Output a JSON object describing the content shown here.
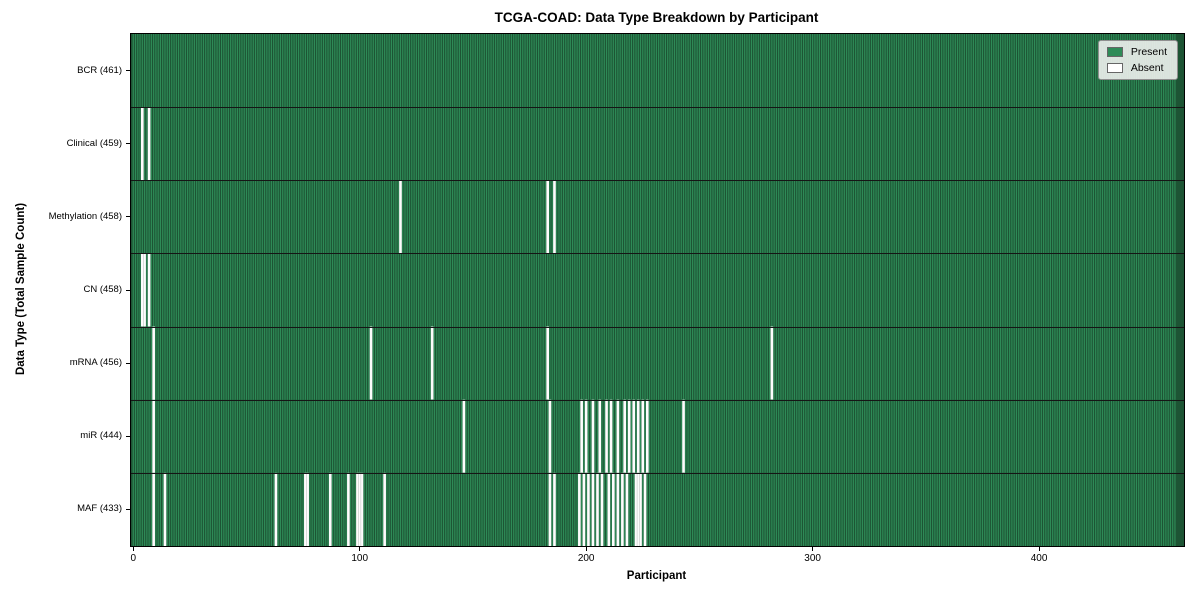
{
  "chart_data": {
    "type": "heatmap",
    "title": "TCGA-COAD: Data Type Breakdown by Participant",
    "xlabel": "Participant",
    "ylabel": "Data Type (Total Sample Count)",
    "n_participants": 461,
    "x_ticks": [
      0,
      100,
      200,
      300,
      400
    ],
    "xlim": [
      -1,
      464
    ],
    "grid": "row-separators-only",
    "legend": {
      "position": "upper-right",
      "items": [
        {
          "label": "Present",
          "color": "#2e8b57"
        },
        {
          "label": "Absent",
          "color": "#ffffff"
        }
      ]
    },
    "rows": [
      {
        "label": "BCR (461)",
        "data_type": "BCR",
        "total_samples": 461,
        "absent_participants": []
      },
      {
        "label": "Clinical (459)",
        "data_type": "Clinical",
        "total_samples": 459,
        "absent_participants": [
          4,
          7
        ]
      },
      {
        "label": "Methylation (458)",
        "data_type": "Methylation",
        "total_samples": 458,
        "absent_participants": [
          118,
          183,
          186
        ]
      },
      {
        "label": "CN (458)",
        "data_type": "CN",
        "total_samples": 458,
        "absent_participants": [
          4,
          5,
          7
        ]
      },
      {
        "label": "mRNA (456)",
        "data_type": "mRNA",
        "total_samples": 456,
        "absent_participants": [
          9,
          105,
          132,
          183,
          282
        ]
      },
      {
        "label": "miR (444)",
        "data_type": "miR",
        "total_samples": 444,
        "absent_participants": [
          9,
          146,
          184,
          198,
          200,
          203,
          206,
          209,
          211,
          214,
          217,
          219,
          221,
          223,
          225,
          227,
          243
        ]
      },
      {
        "label": "MAF (433)",
        "data_type": "MAF",
        "total_samples": 433,
        "absent_participants": [
          9,
          14,
          63,
          76,
          77,
          87,
          95,
          99,
          100,
          101,
          111,
          184,
          186,
          197,
          199,
          201,
          203,
          205,
          207,
          210,
          212,
          214,
          216,
          218,
          222,
          223,
          224,
          226
        ]
      }
    ],
    "colors": {
      "present": "#2e8b57",
      "present_edge": "#1d5434",
      "absent": "#fdfdfd",
      "absent_edge": "#cccccc",
      "row_separator": "#151515",
      "plot_border": "#000000"
    }
  }
}
